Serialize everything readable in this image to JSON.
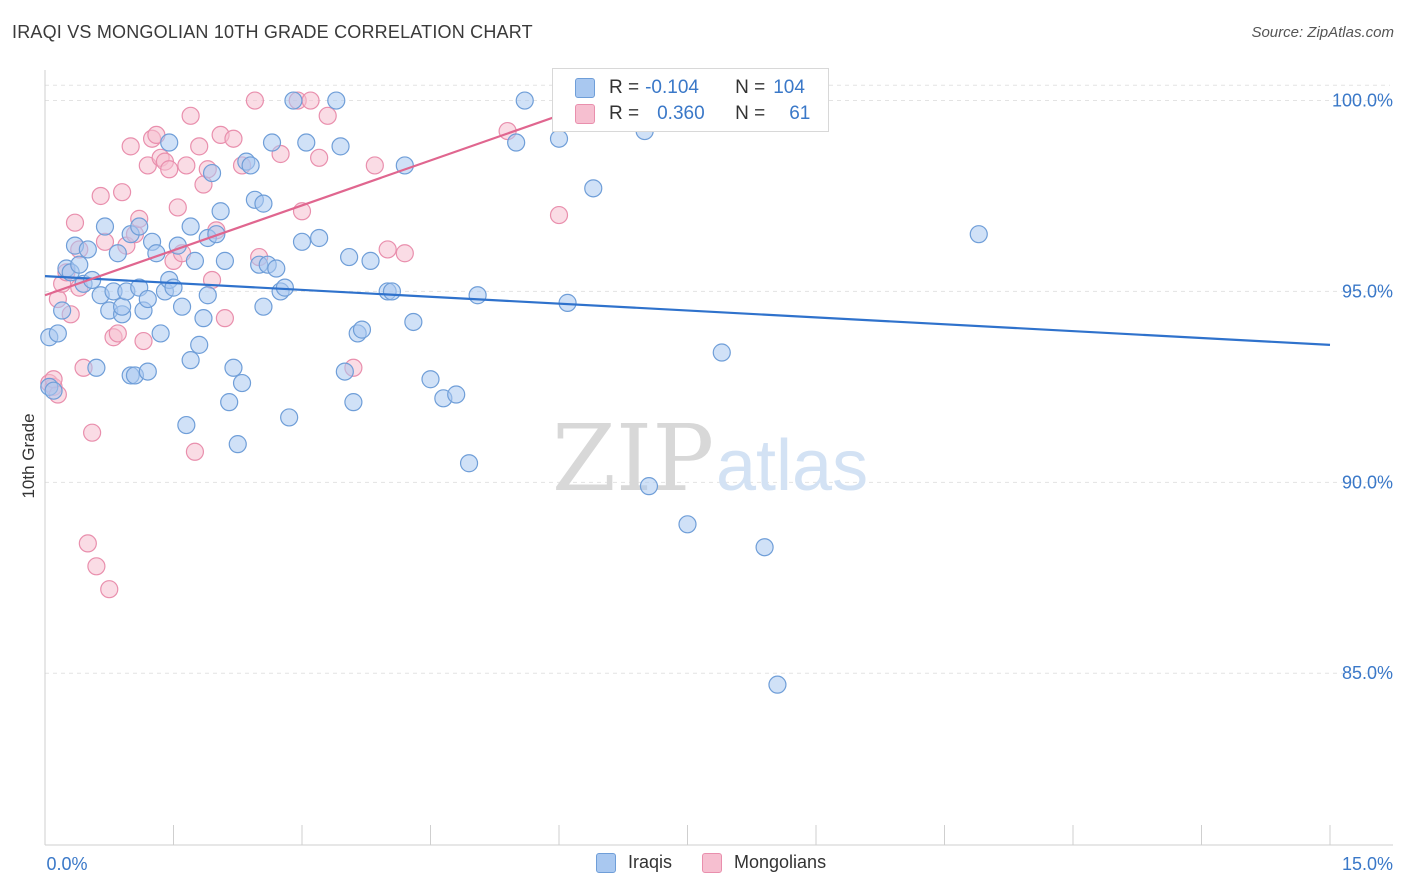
{
  "header": {
    "title": "IRAQI VS MONGOLIAN 10TH GRADE CORRELATION CHART",
    "source": "Source: ZipAtlas.com"
  },
  "watermark": {
    "zip": "ZIP",
    "atlas": "atlas"
  },
  "legend": {
    "r_label": "R =",
    "n_label": "N =",
    "rows": [
      {
        "r": "-0.104",
        "n": "104"
      },
      {
        "r": "0.360",
        "n": "61"
      }
    ]
  },
  "colors": {
    "iraqis_fill": "#a9c8f0",
    "iraqis_stroke": "#6f9ed8",
    "iraqis_line": "#2f72cc",
    "mongolians_fill": "#f6bfd0",
    "mongolians_stroke": "#e98fad",
    "mongolians_line": "#e0668f",
    "tick_label": "#3a78c8",
    "grid": "#e3e3e3"
  },
  "chart_data": {
    "type": "scatter",
    "title": "IRAQI VS MONGOLIAN 10TH GRADE CORRELATION CHART",
    "xlabel": "",
    "ylabel": "10th Grade",
    "xlim": [
      0.0,
      15.0
    ],
    "ylim": [
      80.5,
      100.8
    ],
    "x_tick_labels": [
      "0.0%",
      "15.0%"
    ],
    "y_ticks": [
      85.0,
      90.0,
      95.0,
      100.0
    ],
    "y_tick_labels": [
      "85.0%",
      "90.0%",
      "95.0%",
      "100.0%"
    ],
    "grid": true,
    "legend_position": "top-center",
    "series": [
      {
        "name": "Iraqis",
        "r": -0.104,
        "n": 104,
        "trend": {
          "x": [
            0.0,
            15.0
          ],
          "y": [
            95.4,
            93.6
          ]
        },
        "points": [
          [
            0.05,
            92.5
          ],
          [
            0.05,
            93.8
          ],
          [
            0.1,
            92.4
          ],
          [
            0.15,
            93.9
          ],
          [
            0.2,
            94.5
          ],
          [
            0.25,
            95.6
          ],
          [
            0.3,
            95.5
          ],
          [
            0.35,
            96.2
          ],
          [
            0.4,
            95.7
          ],
          [
            0.45,
            95.2
          ],
          [
            0.5,
            96.1
          ],
          [
            0.55,
            95.3
          ],
          [
            0.6,
            93.0
          ],
          [
            0.65,
            94.9
          ],
          [
            0.7,
            96.7
          ],
          [
            0.75,
            94.5
          ],
          [
            0.8,
            95.0
          ],
          [
            0.85,
            96.0
          ],
          [
            0.9,
            94.4
          ],
          [
            0.9,
            94.6
          ],
          [
            0.95,
            95.0
          ],
          [
            1.0,
            92.8
          ],
          [
            1.0,
            96.5
          ],
          [
            1.05,
            92.8
          ],
          [
            1.1,
            95.1
          ],
          [
            1.1,
            96.7
          ],
          [
            1.15,
            94.5
          ],
          [
            1.2,
            94.8
          ],
          [
            1.2,
            92.9
          ],
          [
            1.25,
            96.3
          ],
          [
            1.3,
            96.0
          ],
          [
            1.35,
            93.9
          ],
          [
            1.4,
            95.0
          ],
          [
            1.45,
            95.3
          ],
          [
            1.45,
            98.9
          ],
          [
            1.5,
            95.1
          ],
          [
            1.55,
            96.2
          ],
          [
            1.6,
            94.6
          ],
          [
            1.65,
            91.5
          ],
          [
            1.7,
            96.7
          ],
          [
            1.7,
            93.2
          ],
          [
            1.75,
            95.8
          ],
          [
            1.8,
            93.6
          ],
          [
            1.85,
            94.3
          ],
          [
            1.9,
            96.4
          ],
          [
            1.9,
            94.9
          ],
          [
            1.95,
            98.1
          ],
          [
            2.0,
            96.5
          ],
          [
            2.05,
            97.1
          ],
          [
            2.1,
            95.8
          ],
          [
            2.15,
            92.1
          ],
          [
            2.2,
            93.0
          ],
          [
            2.25,
            91.0
          ],
          [
            2.3,
            92.6
          ],
          [
            2.35,
            98.4
          ],
          [
            2.4,
            98.3
          ],
          [
            2.45,
            97.4
          ],
          [
            2.5,
            95.7
          ],
          [
            2.55,
            97.3
          ],
          [
            2.55,
            94.6
          ],
          [
            2.6,
            95.7
          ],
          [
            2.65,
            98.9
          ],
          [
            2.7,
            95.6
          ],
          [
            2.75,
            95.0
          ],
          [
            2.8,
            95.1
          ],
          [
            2.85,
            91.7
          ],
          [
            2.9,
            100.0
          ],
          [
            3.0,
            96.3
          ],
          [
            3.05,
            98.9
          ],
          [
            3.2,
            96.4
          ],
          [
            3.4,
            100.0
          ],
          [
            3.45,
            98.8
          ],
          [
            3.5,
            92.9
          ],
          [
            3.55,
            95.9
          ],
          [
            3.6,
            92.1
          ],
          [
            3.65,
            93.9
          ],
          [
            3.7,
            94.0
          ],
          [
            3.8,
            95.8
          ],
          [
            4.0,
            95.0
          ],
          [
            4.05,
            95.0
          ],
          [
            4.2,
            98.3
          ],
          [
            4.3,
            94.2
          ],
          [
            4.5,
            92.7
          ],
          [
            4.65,
            92.2
          ],
          [
            4.8,
            92.3
          ],
          [
            4.95,
            90.5
          ],
          [
            5.05,
            94.9
          ],
          [
            5.5,
            98.9
          ],
          [
            5.6,
            100.0
          ],
          [
            6.0,
            99.0
          ],
          [
            6.1,
            94.7
          ],
          [
            6.4,
            97.7
          ],
          [
            6.6,
            100.0
          ],
          [
            7.0,
            99.2
          ],
          [
            7.05,
            89.9
          ],
          [
            7.5,
            88.9
          ],
          [
            7.9,
            93.4
          ],
          [
            8.4,
            88.3
          ],
          [
            8.55,
            84.7
          ],
          [
            10.9,
            96.5
          ]
        ]
      },
      {
        "name": "Mongolians",
        "r": 0.36,
        "n": 61,
        "trend": {
          "x": [
            0.0,
            6.5
          ],
          "y": [
            94.9,
            100.0
          ]
        },
        "points": [
          [
            0.05,
            92.6
          ],
          [
            0.1,
            92.5
          ],
          [
            0.15,
            94.8
          ],
          [
            0.2,
            95.2
          ],
          [
            0.25,
            95.5
          ],
          [
            0.3,
            94.4
          ],
          [
            0.35,
            96.8
          ],
          [
            0.4,
            96.1
          ],
          [
            0.45,
            93.0
          ],
          [
            0.5,
            88.4
          ],
          [
            0.55,
            91.3
          ],
          [
            0.6,
            87.8
          ],
          [
            0.65,
            97.5
          ],
          [
            0.7,
            96.3
          ],
          [
            0.75,
            87.2
          ],
          [
            0.8,
            93.8
          ],
          [
            0.85,
            93.9
          ],
          [
            0.9,
            97.6
          ],
          [
            0.95,
            96.2
          ],
          [
            1.0,
            98.8
          ],
          [
            1.05,
            96.5
          ],
          [
            1.1,
            96.9
          ],
          [
            1.15,
            93.7
          ],
          [
            1.2,
            98.3
          ],
          [
            1.25,
            99.0
          ],
          [
            1.3,
            99.1
          ],
          [
            1.35,
            98.5
          ],
          [
            1.4,
            98.4
          ],
          [
            1.45,
            98.2
          ],
          [
            1.5,
            95.8
          ],
          [
            1.55,
            97.2
          ],
          [
            1.6,
            96.0
          ],
          [
            1.65,
            98.3
          ],
          [
            1.7,
            99.6
          ],
          [
            1.75,
            90.8
          ],
          [
            1.8,
            98.8
          ],
          [
            1.85,
            97.8
          ],
          [
            1.9,
            98.2
          ],
          [
            1.95,
            95.3
          ],
          [
            2.0,
            96.6
          ],
          [
            2.05,
            99.1
          ],
          [
            2.1,
            94.3
          ],
          [
            2.2,
            99.0
          ],
          [
            2.3,
            98.3
          ],
          [
            2.45,
            100.0
          ],
          [
            2.5,
            95.9
          ],
          [
            2.75,
            98.6
          ],
          [
            2.95,
            100.0
          ],
          [
            3.0,
            97.1
          ],
          [
            3.1,
            100.0
          ],
          [
            3.2,
            98.5
          ],
          [
            3.3,
            99.6
          ],
          [
            3.6,
            93.0
          ],
          [
            3.85,
            98.3
          ],
          [
            4.0,
            96.1
          ],
          [
            4.2,
            96.0
          ],
          [
            5.4,
            99.2
          ],
          [
            6.0,
            97.0
          ],
          [
            0.15,
            92.3
          ],
          [
            0.1,
            92.7
          ],
          [
            0.4,
            95.1
          ]
        ]
      }
    ]
  }
}
